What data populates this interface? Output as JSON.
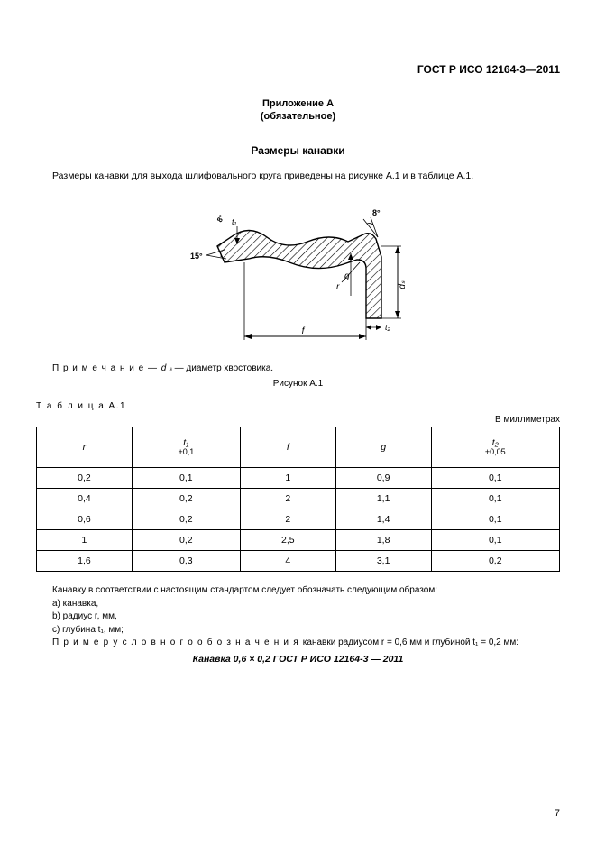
{
  "doc_id": "ГОСТ Р ИСО 12164-3—2011",
  "appendix_label": "Приложение А",
  "mandatory_label": "(обязательное)",
  "section_title": "Размеры канавки",
  "intro_text": "Размеры канавки для выхода шлифовального круга приведены на рисунке А.1 и в таблице А.1.",
  "figure": {
    "labels": {
      "angle8": "8°",
      "angle15": "15°",
      "t1": "t₁",
      "r": "r",
      "g": "g",
      "t2": "t₂",
      "f": "f",
      "ds": "dₛ"
    },
    "stroke": "#000000",
    "hatch": "#000000",
    "fill": "#ffffff"
  },
  "note_prefix": "П р и м е ч а н и е — ",
  "note_symbol": "d ₛ",
  "note_rest": " — диаметр хвостовика.",
  "figure_caption": "Рисунок А.1",
  "table_label": "Т а б л и ц а  А.1",
  "units_label": "В миллиметрах",
  "table": {
    "headers": [
      {
        "label": "r",
        "tol": ""
      },
      {
        "label": "t₁",
        "tol": "+0,1"
      },
      {
        "label": "f",
        "tol": ""
      },
      {
        "label": "g",
        "tol": ""
      },
      {
        "label": "t₂",
        "tol": "+0,05"
      }
    ],
    "rows": [
      [
        "0,2",
        "0,1",
        "1",
        "0,9",
        "0,1"
      ],
      [
        "0,4",
        "0,2",
        "2",
        "1,1",
        "0,1"
      ],
      [
        "0,6",
        "0,2",
        "2",
        "1,4",
        "0,1"
      ],
      [
        "1",
        "0,2",
        "2,5",
        "1,8",
        "0,1"
      ],
      [
        "1,6",
        "0,3",
        "4",
        "3,1",
        "0,2"
      ]
    ],
    "col_widths_pct": [
      20,
      20,
      20,
      20,
      20
    ]
  },
  "post": {
    "line1": "Канавку в соответствии с настоящим стандартом следует обозначать следующим образом:",
    "a": "a)  канавка,",
    "b": "b)  радиус r, мм,",
    "c": "c)  глубина t₁, мм;",
    "example_prefix": "П р и м е р  у с л о в н о г о  о б о з н а ч е н и я  ",
    "example_rest": "канавки радиусом r = 0,6 мм и глубиной t₁ = 0,2 мм:"
  },
  "designation": "Канавка 0,6 × 0,2 ГОСТ Р ИСО 12164-3 — 2011",
  "page_number": "7"
}
